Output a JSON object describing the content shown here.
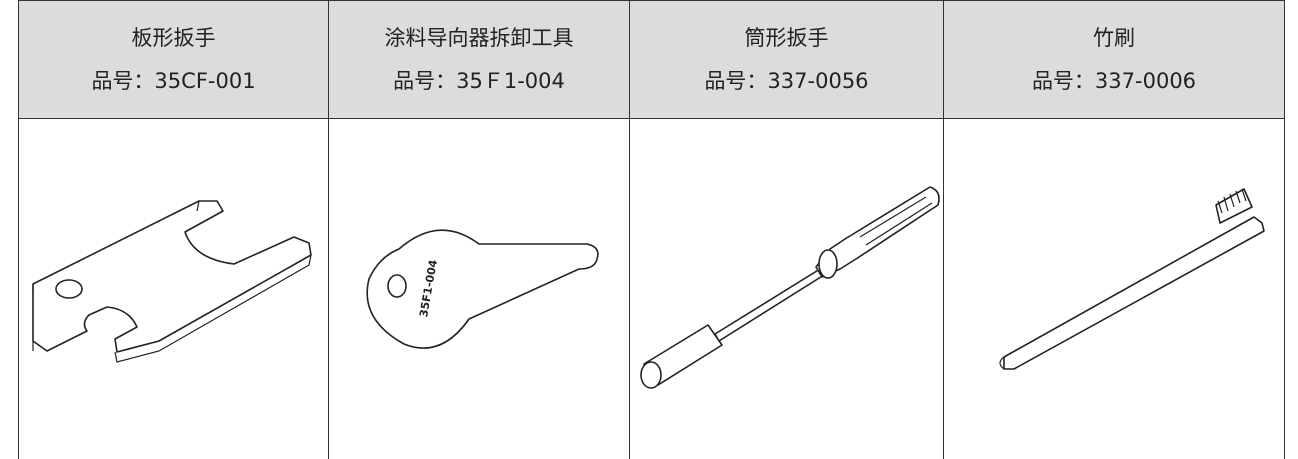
{
  "table": {
    "columns": [
      {
        "name": "板形扳手",
        "part_no": "品号：35CF-001"
      },
      {
        "name": "涂料导向器拆卸工具",
        "part_no": "品号：35Ｆ1-004",
        "engraving": "35F1-004"
      },
      {
        "name": "筒形扳手",
        "part_no": "品号：337-0056"
      },
      {
        "name": "竹刷",
        "part_no": "品号：337-0006"
      }
    ]
  }
}
